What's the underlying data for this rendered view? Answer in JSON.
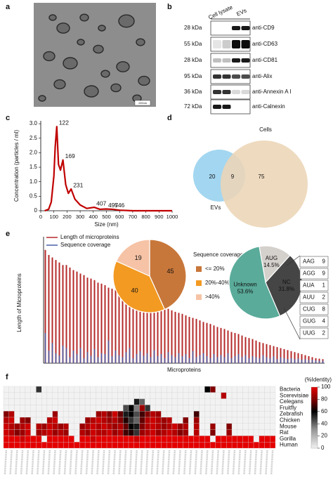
{
  "panel_labels": [
    "a",
    "b",
    "c",
    "d",
    "e",
    "f"
  ],
  "image": {
    "scale_bar": "100nm"
  },
  "blot": {
    "lanes": [
      "Cell lysate",
      "EVs"
    ],
    "rows": [
      {
        "size": "28 kDa",
        "antibody": "anti-CD9"
      },
      {
        "size": "55 kDa",
        "antibody": "anti-CD63"
      },
      {
        "size": "28 kDa",
        "antibody": "anti-CD81"
      },
      {
        "size": "95 kDa",
        "antibody": "anti-Alix"
      },
      {
        "size": "36 kDa",
        "antibody": "anti-Annexin A I"
      },
      {
        "size": "72 kDa",
        "antibody": "anti-Calnexin"
      }
    ]
  },
  "chart_data": [
    {
      "type": "line",
      "xlabel": "Size (nm)",
      "ylabel": "Concentration (particles / ml)",
      "x": [
        30,
        60,
        80,
        100,
        110,
        122,
        135,
        150,
        169,
        190,
        210,
        231,
        260,
        300,
        350,
        407,
        450,
        497,
        546,
        600,
        700,
        800,
        1000
      ],
      "series": [
        {
          "color": "#c00000",
          "values": [
            0,
            0.05,
            0.3,
            1.2,
            2.2,
            2.9,
            1.6,
            1.4,
            1.75,
            0.9,
            0.6,
            0.75,
            0.4,
            0.2,
            0.08,
            0.12,
            0.05,
            0.06,
            0.05,
            0.02,
            0,
            0,
            0
          ]
        }
      ],
      "peaks": [
        122,
        169,
        231,
        407,
        497,
        546
      ],
      "peak_color": "#1a1acc",
      "xlim": [
        0,
        1000
      ],
      "xticks": [
        0,
        100,
        200,
        300,
        400,
        500,
        600,
        700,
        800,
        900,
        1000
      ],
      "ylim": [
        0,
        3.1
      ],
      "yticks": [
        0,
        0.5,
        {
          "value": 1,
          "label": "1.0"
        },
        1.5,
        {
          "value": 2,
          "label": "2.0"
        },
        2.5,
        {
          "value": 3,
          "label": "3.0"
        }
      ]
    },
    {
      "type": "venn",
      "sets": [
        {
          "name": "EVs",
          "color": "#a3d6f0",
          "value": 20
        },
        {
          "name": "Cells",
          "color": "#ecd5b6",
          "value": 75
        }
      ],
      "overlap": 9
    },
    {
      "type": "bar",
      "xlabel": "Microproteins",
      "ylabel": "Length of Microproteins",
      "legend": "upper left",
      "ylim": [
        0,
        240
      ],
      "series": [
        {
          "name": "Length of microproteins",
          "color": "#b52a2a",
          "values": [
            225,
            215,
            210,
            205,
            200,
            195,
            195,
            190,
            185,
            182,
            178,
            175,
            170,
            168,
            165,
            160,
            158,
            155,
            150,
            148,
            145,
            142,
            140,
            138,
            135,
            132,
            130,
            128,
            125,
            122,
            120,
            118,
            115,
            112,
            110,
            108,
            105,
            102,
            100,
            98,
            95,
            92,
            90,
            88,
            85,
            82,
            80,
            78,
            75,
            72,
            70,
            68,
            65,
            62,
            60,
            58,
            55,
            52,
            50,
            48,
            45,
            42,
            40,
            38,
            36,
            34,
            32,
            30,
            28,
            26,
            24,
            22,
            20,
            18,
            16,
            14,
            12,
            10,
            9,
            8
          ]
        },
        {
          "name": "Sequence coverage",
          "color": "#4a5fa8",
          "values": [
            60,
            25,
            40,
            20,
            15,
            35,
            30,
            12,
            25,
            18,
            30,
            10,
            22,
            15,
            28,
            12,
            20,
            18,
            45,
            14,
            25,
            16,
            12,
            22,
            30,
            10,
            18,
            24,
            15,
            20,
            12,
            26,
            14,
            18,
            10,
            22,
            16,
            12,
            20,
            14,
            18,
            10,
            24,
            12,
            16,
            20,
            14,
            10,
            18,
            12,
            16,
            12,
            20,
            10,
            14,
            18,
            12,
            16,
            10,
            14,
            12,
            10,
            16,
            12,
            10,
            14,
            8,
            12,
            10,
            8,
            10,
            8,
            9,
            7,
            8,
            6,
            7,
            6,
            5,
            5
          ]
        }
      ]
    },
    {
      "type": "pie",
      "title": "Sequence coverage",
      "categories": [
        "<= 20%",
        "20%-40%",
        ">40%"
      ],
      "values": [
        45,
        40,
        19
      ],
      "colors": [
        "#c8773a",
        "#f39a22",
        "#f6c3a6"
      ]
    },
    {
      "type": "pie",
      "categories": [
        "AUG",
        "NC",
        "Unknown"
      ],
      "values": [
        14.5,
        31.8,
        53.6
      ],
      "value_labels": [
        "14.5%",
        "31.8%",
        "53.6%"
      ],
      "colors": [
        "#d4d0cc",
        "#454545",
        "#5aab9a"
      ],
      "breakdown": {
        "categories": [
          "AAG",
          "AGG",
          "AUA",
          "AUU",
          "CUG",
          "GUG",
          "UUG"
        ],
        "values": [
          9,
          9,
          1,
          2,
          8,
          4,
          2
        ]
      }
    },
    {
      "type": "heatmap",
      "rows": [
        "Bacteria",
        "Scerevisiae",
        "Celegans",
        "Fruitfly",
        "Zebrafish",
        "Chicken",
        "Mouse",
        "Rat",
        "Gorilla",
        "Human"
      ],
      "values": [
        [
          0,
          0,
          0,
          0,
          0,
          0,
          50,
          0,
          0,
          0,
          0,
          0,
          0,
          0,
          0,
          0,
          0,
          0,
          0,
          0,
          0,
          0,
          0,
          0,
          0,
          0,
          0,
          0,
          0,
          0,
          0,
          0,
          0,
          0,
          0,
          0,
          0,
          60,
          80,
          0,
          0,
          0,
          0,
          0,
          0,
          0,
          0,
          0,
          0,
          0
        ],
        [
          0,
          0,
          0,
          0,
          0,
          0,
          0,
          0,
          0,
          0,
          0,
          0,
          0,
          0,
          0,
          0,
          0,
          0,
          0,
          0,
          0,
          0,
          0,
          0,
          0,
          0,
          0,
          0,
          0,
          0,
          0,
          0,
          0,
          0,
          0,
          0,
          0,
          0,
          0,
          0,
          90,
          0,
          0,
          0,
          0,
          0,
          0,
          0,
          0,
          0
        ],
        [
          0,
          0,
          0,
          0,
          0,
          0,
          0,
          0,
          0,
          0,
          0,
          0,
          0,
          0,
          0,
          0,
          0,
          0,
          0,
          0,
          0,
          0,
          0,
          0,
          55,
          40,
          0,
          0,
          0,
          0,
          0,
          0,
          0,
          0,
          0,
          0,
          0,
          0,
          0,
          0,
          0,
          0,
          0,
          0,
          0,
          0,
          0,
          0,
          0,
          0
        ],
        [
          0,
          0,
          0,
          0,
          0,
          0,
          0,
          0,
          0,
          0,
          0,
          0,
          0,
          0,
          0,
          0,
          0,
          0,
          0,
          0,
          0,
          0,
          45,
          60,
          35,
          85,
          50,
          0,
          0,
          0,
          0,
          0,
          0,
          0,
          0,
          0,
          0,
          0,
          0,
          0,
          0,
          0,
          0,
          0,
          0,
          0,
          0,
          0,
          0,
          0
        ],
        [
          80,
          90,
          0,
          0,
          0,
          0,
          0,
          0,
          0,
          85,
          0,
          0,
          0,
          0,
          0,
          0,
          0,
          85,
          90,
          80,
          95,
          75,
          55,
          60,
          45,
          70,
          80,
          90,
          85,
          0,
          0,
          0,
          0,
          0,
          0,
          70,
          0,
          0,
          0,
          0,
          0,
          0,
          0,
          0,
          0,
          0,
          0,
          0,
          0,
          0
        ],
        [
          90,
          95,
          0,
          85,
          80,
          0,
          0,
          0,
          90,
          95,
          0,
          0,
          0,
          0,
          0,
          85,
          90,
          95,
          90,
          85,
          90,
          80,
          65,
          50,
          40,
          75,
          90,
          95,
          90,
          85,
          90,
          0,
          0,
          80,
          0,
          85,
          0,
          0,
          0,
          0,
          0,
          0,
          0,
          0,
          0,
          0,
          0,
          0,
          0,
          0
        ],
        [
          95,
          90,
          85,
          90,
          95,
          0,
          90,
          85,
          95,
          90,
          85,
          90,
          0,
          0,
          85,
          90,
          95,
          90,
          95,
          90,
          85,
          90,
          75,
          60,
          55,
          80,
          90,
          95,
          90,
          85,
          90,
          95,
          85,
          90,
          0,
          90,
          0,
          0,
          85,
          0,
          0,
          80,
          0,
          0,
          0,
          0,
          0,
          0,
          0,
          0
        ],
        [
          95,
          90,
          80,
          85,
          95,
          0,
          85,
          90,
          95,
          85,
          90,
          85,
          0,
          0,
          90,
          85,
          95,
          90,
          90,
          95,
          85,
          90,
          70,
          65,
          50,
          85,
          90,
          95,
          85,
          90,
          95,
          90,
          80,
          85,
          0,
          90,
          0,
          0,
          80,
          0,
          0,
          85,
          0,
          0,
          0,
          0,
          0,
          0,
          0,
          0
        ],
        [
          100,
          100,
          100,
          95,
          100,
          100,
          100,
          0,
          100,
          100,
          100,
          100,
          100,
          0,
          100,
          100,
          95,
          100,
          100,
          100,
          100,
          100,
          100,
          100,
          95,
          100,
          100,
          100,
          100,
          100,
          100,
          100,
          100,
          100,
          100,
          100,
          100,
          100,
          0,
          100,
          100,
          100,
          100,
          100,
          100,
          100,
          0,
          100,
          100,
          100
        ],
        [
          100,
          100,
          100,
          100,
          100,
          100,
          100,
          100,
          100,
          100,
          100,
          100,
          100,
          100,
          100,
          100,
          100,
          100,
          100,
          100,
          100,
          100,
          100,
          100,
          100,
          100,
          100,
          100,
          100,
          100,
          100,
          100,
          100,
          100,
          100,
          100,
          100,
          100,
          100,
          100,
          100,
          100,
          100,
          100,
          100,
          100,
          100,
          100,
          100,
          100
        ]
      ],
      "colorbar": {
        "label": "(%Identity)",
        "lim": [
          0,
          100
        ],
        "ticks": [
          100,
          80,
          60,
          40,
          20,
          0
        ]
      }
    }
  ]
}
